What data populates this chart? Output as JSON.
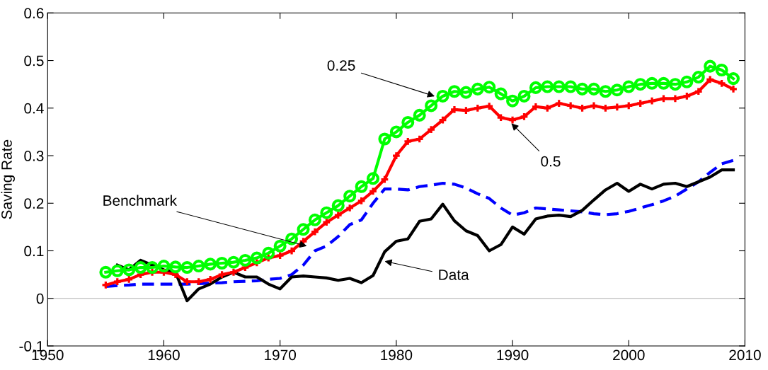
{
  "chart_data": {
    "type": "line",
    "ylabel": "Saving Rate",
    "x": [
      1955,
      1956,
      1957,
      1958,
      1959,
      1960,
      1961,
      1962,
      1963,
      1964,
      1965,
      1966,
      1967,
      1968,
      1969,
      1970,
      1971,
      1972,
      1973,
      1974,
      1975,
      1976,
      1977,
      1978,
      1979,
      1980,
      1981,
      1982,
      1983,
      1984,
      1985,
      1986,
      1987,
      1988,
      1989,
      1990,
      1991,
      1992,
      1993,
      1994,
      1995,
      1996,
      1997,
      1998,
      1999,
      2000,
      2001,
      2002,
      2003,
      2004,
      2005,
      2006,
      2007,
      2008,
      2009
    ],
    "series": [
      {
        "color": "#0000ff",
        "marker": "none",
        "line_style": "dashed",
        "values": [
          0.025,
          0.027,
          0.028,
          0.03,
          0.03,
          0.03,
          0.03,
          0.03,
          0.031,
          0.032,
          0.033,
          0.035,
          0.036,
          0.037,
          0.04,
          0.042,
          0.05,
          0.07,
          0.1,
          0.11,
          0.13,
          0.155,
          0.165,
          0.2,
          0.23,
          0.23,
          0.228,
          0.235,
          0.238,
          0.242,
          0.24,
          0.232,
          0.22,
          0.21,
          0.19,
          0.175,
          0.18,
          0.19,
          0.188,
          0.186,
          0.184,
          0.182,
          0.178,
          0.176,
          0.178,
          0.183,
          0.19,
          0.197,
          0.205,
          0.215,
          0.23,
          0.245,
          0.265,
          0.283,
          0.29
        ]
      },
      {
        "color": "#000000",
        "marker": "none",
        "line_style": "solid",
        "x": [
          1956,
          1957,
          1958,
          1959,
          1960,
          1961,
          1962,
          1963,
          1964,
          1965,
          1966,
          1967,
          1968,
          1969,
          1970,
          1971,
          1972,
          1973,
          1974,
          1975,
          1976,
          1977,
          1978,
          1979,
          1980,
          1981,
          1982,
          1983,
          1984,
          1985,
          1986,
          1987,
          1988,
          1989,
          1990,
          1991,
          1992,
          1993,
          1994,
          1995,
          1996,
          1997,
          1998,
          1999,
          2000,
          2001,
          2002,
          2003,
          2004,
          2005,
          2006,
          2007,
          2008,
          2009
        ],
        "values": [
          0.07,
          0.06,
          0.08,
          0.07,
          0.06,
          0.055,
          -0.005,
          0.02,
          0.03,
          0.045,
          0.055,
          0.045,
          0.045,
          0.03,
          0.02,
          0.045,
          0.047,
          0.045,
          0.043,
          0.038,
          0.042,
          0.033,
          0.048,
          0.098,
          0.12,
          0.125,
          0.162,
          0.167,
          0.198,
          0.163,
          0.142,
          0.132,
          0.1,
          0.113,
          0.15,
          0.135,
          0.167,
          0.173,
          0.175,
          0.172,
          0.185,
          0.207,
          0.228,
          0.242,
          0.225,
          0.24,
          0.23,
          0.24,
          0.242,
          0.235,
          0.245,
          0.255,
          0.27,
          0.27
        ]
      },
      {
        "color": "#ff0000",
        "marker": "cross",
        "line_style": "solid",
        "values": [
          0.028,
          0.035,
          0.04,
          0.05,
          0.055,
          0.055,
          0.05,
          0.035,
          0.035,
          0.04,
          0.05,
          0.055,
          0.065,
          0.075,
          0.085,
          0.09,
          0.1,
          0.12,
          0.14,
          0.16,
          0.175,
          0.19,
          0.205,
          0.225,
          0.25,
          0.3,
          0.33,
          0.335,
          0.355,
          0.375,
          0.397,
          0.395,
          0.4,
          0.404,
          0.38,
          0.375,
          0.382,
          0.403,
          0.4,
          0.41,
          0.405,
          0.4,
          0.405,
          0.4,
          0.402,
          0.405,
          0.41,
          0.415,
          0.42,
          0.42,
          0.425,
          0.435,
          0.46,
          0.452,
          0.44
        ]
      },
      {
        "color": "#00ff00",
        "marker": "circle",
        "line_style": "solid",
        "values": [
          0.055,
          0.058,
          0.06,
          0.065,
          0.065,
          0.068,
          0.066,
          0.065,
          0.068,
          0.072,
          0.074,
          0.076,
          0.08,
          0.085,
          0.095,
          0.11,
          0.125,
          0.145,
          0.165,
          0.18,
          0.195,
          0.215,
          0.235,
          0.252,
          0.335,
          0.35,
          0.37,
          0.385,
          0.405,
          0.425,
          0.435,
          0.433,
          0.44,
          0.444,
          0.43,
          0.415,
          0.425,
          0.443,
          0.445,
          0.445,
          0.445,
          0.44,
          0.44,
          0.435,
          0.438,
          0.445,
          0.45,
          0.452,
          0.452,
          0.45,
          0.455,
          0.465,
          0.488,
          0.48,
          0.462
        ]
      }
    ],
    "annotations": [
      {
        "text": "0.25",
        "x": 1983.3,
        "y": 0.425
      },
      {
        "text": "0.5",
        "x": 1989.9,
        "y": 0.368
      },
      {
        "text": "Benchmark",
        "x": 1972.3,
        "y": 0.11
      },
      {
        "text": "Data",
        "x": 1979,
        "y": 0.078
      }
    ],
    "ref_lines": [
      {
        "axis": "y",
        "value": 0,
        "color": "#c8c8c8"
      }
    ],
    "xlim": [
      1950,
      2010
    ],
    "xticks": [
      1950,
      1960,
      1970,
      1980,
      1990,
      2000,
      2010
    ],
    "ylim": [
      -0.1,
      0.6
    ],
    "yticks": [
      -0.1,
      0,
      0.1,
      0.2,
      0.3,
      0.4,
      0.5,
      0.6
    ],
    "grid": false,
    "legend": false
  }
}
